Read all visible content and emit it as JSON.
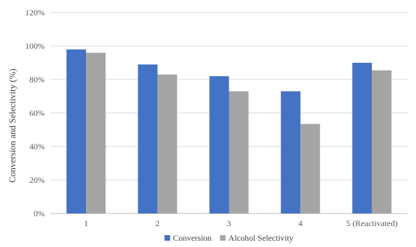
{
  "chart_data": {
    "type": "bar",
    "categories": [
      "1",
      "2",
      "3",
      "4",
      "5 (Reactivated)"
    ],
    "series": [
      {
        "name": "Conversion",
        "values": [
          98,
          89,
          82,
          73,
          90
        ],
        "color": "#4472C4"
      },
      {
        "name": "Alcohol Selectivity",
        "values": [
          96,
          83,
          73,
          53.5,
          85.5
        ],
        "color": "#A5A5A5"
      }
    ],
    "title": "",
    "xlabel": "",
    "ylabel": "Conversion and Selectivity (%)",
    "ylim": [
      0,
      120
    ],
    "yticks": [
      0,
      20,
      40,
      60,
      80,
      100,
      120
    ],
    "ytick_labels": [
      "0%",
      "20%",
      "40%",
      "60%",
      "80%",
      "100%",
      "120%"
    ],
    "grid": true,
    "legend_position": "bottom"
  }
}
